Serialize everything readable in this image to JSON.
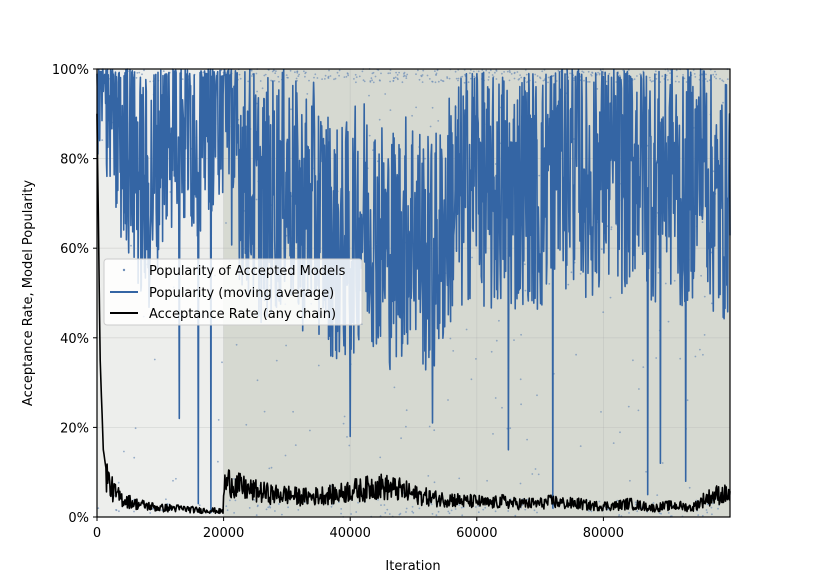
{
  "chart_data": {
    "type": "line",
    "xlabel": "Iteration",
    "ylabel": "Acceptance Rate, Model Popularity",
    "xlim": [
      0,
      100000
    ],
    "ylim": [
      0,
      1
    ],
    "xticks": [
      0,
      20000,
      40000,
      60000,
      80000
    ],
    "xtick_labels": [
      "0",
      "20000",
      "40000",
      "60000",
      "80000"
    ],
    "yticks": [
      0,
      0.2,
      0.4,
      0.6,
      0.8,
      1.0
    ],
    "ytick_labels": [
      "0%",
      "20%",
      "40%",
      "60%",
      "80%",
      "100%"
    ],
    "grid": true,
    "legend_position": "center-left",
    "shaded_regions": [
      {
        "x_start": 0,
        "x_end": 20000,
        "color": "#edeeec"
      },
      {
        "x_start": 20000,
        "x_end": 100000,
        "color": "#d6d9d1"
      }
    ],
    "series": [
      {
        "name": "Popularity of Accepted Models",
        "kind": "scatter",
        "color": "#6f8fb8",
        "description_points": "dense scattered points, mostly near 100% and 0%, sparse in between"
      },
      {
        "name": "Popularity (moving average)",
        "kind": "line",
        "color": "#3465a4",
        "x": [
          0,
          2000,
          4000,
          6000,
          8000,
          10000,
          12000,
          14000,
          16000,
          18000,
          20000,
          22000,
          24000,
          26000,
          28000,
          30000,
          32000,
          34000,
          36000,
          38000,
          40000,
          42000,
          44000,
          46000,
          48000,
          50000,
          52000,
          54000,
          56000,
          58000,
          60000,
          62000,
          64000,
          66000,
          68000,
          70000,
          72000,
          74000,
          76000,
          78000,
          80000,
          82000,
          84000,
          86000,
          88000,
          90000,
          92000,
          94000,
          96000,
          98000,
          100000
        ],
        "y": [
          0.98,
          0.92,
          0.86,
          0.8,
          0.7,
          0.85,
          0.92,
          0.88,
          0.9,
          0.95,
          0.99,
          0.82,
          0.75,
          0.7,
          0.72,
          0.75,
          0.68,
          0.7,
          0.66,
          0.6,
          0.62,
          0.68,
          0.65,
          0.6,
          0.62,
          0.66,
          0.58,
          0.6,
          0.7,
          0.72,
          0.8,
          0.7,
          0.74,
          0.72,
          0.76,
          0.7,
          0.82,
          0.78,
          0.8,
          0.74,
          0.8,
          0.76,
          0.78,
          0.82,
          0.74,
          0.8,
          0.72,
          0.76,
          0.8,
          0.68,
          0.72
        ],
        "dips": [
          {
            "x": 13000,
            "y": 0.22
          },
          {
            "x": 16000,
            "y": 0.03
          },
          {
            "x": 18000,
            "y": 0.01
          },
          {
            "x": 40000,
            "y": 0.18
          },
          {
            "x": 53000,
            "y": 0.21
          },
          {
            "x": 65000,
            "y": 0.15
          },
          {
            "x": 72000,
            "y": 0.02
          },
          {
            "x": 87000,
            "y": 0.05
          },
          {
            "x": 89000,
            "y": 0.12
          },
          {
            "x": 93000,
            "y": 0.08
          }
        ]
      },
      {
        "name": "Acceptance Rate (any chain)",
        "kind": "line",
        "color": "#000000",
        "x": [
          0,
          500,
          1000,
          1500,
          2000,
          3000,
          4000,
          6000,
          8000,
          10000,
          12000,
          14000,
          16000,
          18000,
          19900,
          20100,
          21000,
          22000,
          24000,
          26000,
          28000,
          30000,
          32000,
          34000,
          36000,
          38000,
          40000,
          42000,
          44000,
          46000,
          48000,
          50000,
          52000,
          54000,
          56000,
          58000,
          60000,
          62000,
          64000,
          66000,
          68000,
          70000,
          72000,
          74000,
          76000,
          78000,
          80000,
          82000,
          84000,
          86000,
          88000,
          90000,
          92000,
          94000,
          96000,
          98000,
          100000
        ],
        "y": [
          0.9,
          0.35,
          0.15,
          0.1,
          0.07,
          0.05,
          0.04,
          0.03,
          0.025,
          0.02,
          0.02,
          0.018,
          0.015,
          0.015,
          0.012,
          0.07,
          0.08,
          0.07,
          0.06,
          0.055,
          0.05,
          0.05,
          0.045,
          0.045,
          0.05,
          0.05,
          0.06,
          0.06,
          0.07,
          0.065,
          0.06,
          0.05,
          0.045,
          0.04,
          0.04,
          0.035,
          0.035,
          0.03,
          0.035,
          0.03,
          0.03,
          0.03,
          0.035,
          0.03,
          0.03,
          0.025,
          0.025,
          0.025,
          0.03,
          0.025,
          0.02,
          0.025,
          0.025,
          0.02,
          0.04,
          0.05,
          0.05
        ]
      }
    ]
  }
}
